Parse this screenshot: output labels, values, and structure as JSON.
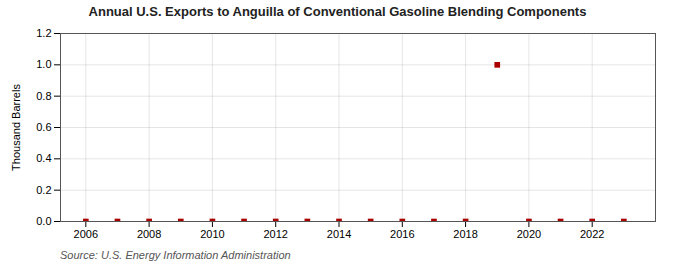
{
  "chart_data": {
    "type": "scatter",
    "title": "Annual U.S. Exports to Anguilla of Conventional Gasoline Blending Components",
    "ylabel": "Thousand Barrels",
    "source": "Source: U.S. Energy Information Administration",
    "x": [
      2006,
      2007,
      2008,
      2009,
      2010,
      2011,
      2012,
      2013,
      2014,
      2015,
      2016,
      2017,
      2018,
      2019,
      2020,
      2021,
      2022,
      2023
    ],
    "values": [
      0.0,
      0.0,
      0.0,
      0.0,
      0.0,
      0.0,
      0.0,
      0.0,
      0.0,
      0.0,
      0.0,
      0.0,
      0.0,
      1.0,
      0.0,
      0.0,
      0.0,
      0.0
    ],
    "color": "#aa0000",
    "marker": "square",
    "xlim": [
      2005.2,
      2024.0
    ],
    "ylim": [
      0.0,
      1.2
    ],
    "xticks": [
      2006,
      2008,
      2010,
      2012,
      2014,
      2016,
      2018,
      2020,
      2022
    ],
    "yticks": [
      {
        "value": 0.0,
        "label": "0.0"
      },
      0.2,
      0.4,
      0.6,
      0.8,
      {
        "value": 1.0,
        "label": "1.0"
      },
      1.2
    ],
    "grid": true
  }
}
